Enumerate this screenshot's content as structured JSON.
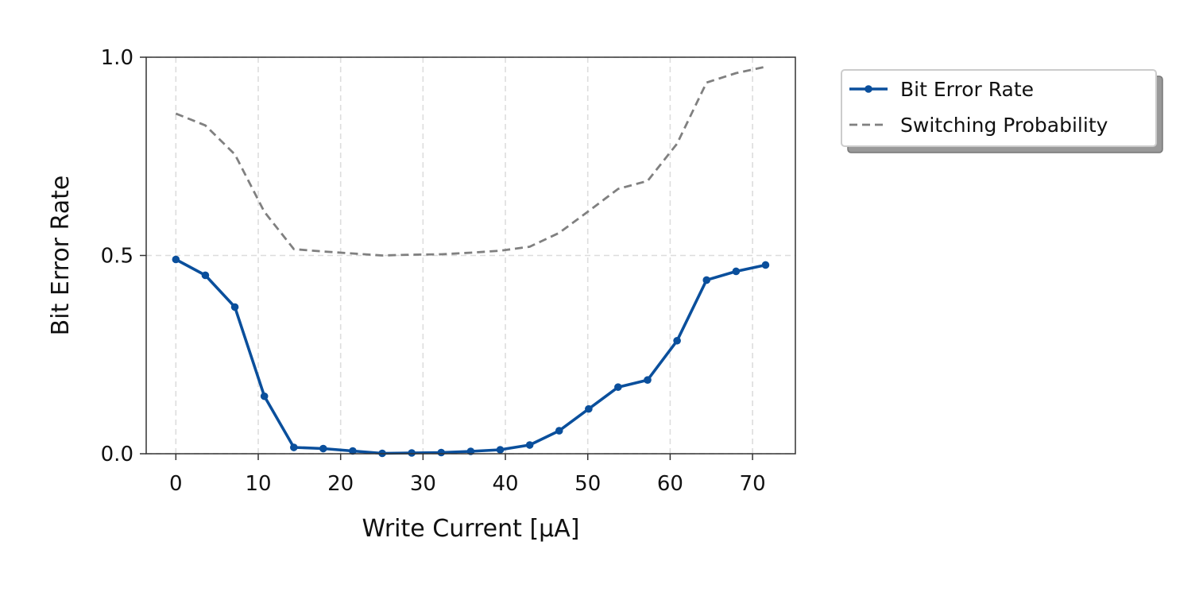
{
  "chart_data": {
    "type": "line",
    "title": "",
    "xlabel": "Write Current [μA]",
    "ylabel": "Bit Error Rate",
    "xlim": [
      -3.6,
      75.2
    ],
    "ylim": [
      0,
      1
    ],
    "xticks": [
      0,
      10,
      20,
      30,
      40,
      50,
      60,
      70
    ],
    "xtick_labels": [
      "0",
      "10",
      "20",
      "30",
      "40",
      "50",
      "60",
      "70"
    ],
    "yticks": [
      0,
      0.5,
      1
    ],
    "ytick_labels": [
      "0.0",
      "0.5",
      "1.0"
    ],
    "grid": true,
    "legend_position": "outside-top-right",
    "x": [
      0,
      3.58,
      7.16,
      10.74,
      14.32,
      17.89,
      21.47,
      25.05,
      28.63,
      32.21,
      35.79,
      39.37,
      42.95,
      46.53,
      50.11,
      53.68,
      57.26,
      60.84,
      64.42,
      68.0,
      71.58
    ],
    "series": [
      {
        "name": "Bit Error Rate",
        "color": "#0a4f9c",
        "style": "solid",
        "marker": "circle",
        "values": [
          0.49,
          0.45,
          0.37,
          0.145,
          0.016,
          0.013,
          0.007,
          0.001,
          0.002,
          0.003,
          0.006,
          0.01,
          0.022,
          0.058,
          0.113,
          0.168,
          0.186,
          0.285,
          0.438,
          0.46,
          0.476
        ]
      },
      {
        "name": "Switching Probability",
        "color": "#808080",
        "style": "dashed",
        "marker": "none",
        "values": [
          0.858,
          0.828,
          0.755,
          0.61,
          0.516,
          0.51,
          0.505,
          0.5,
          0.502,
          0.503,
          0.507,
          0.512,
          0.522,
          0.557,
          0.612,
          0.668,
          0.688,
          0.782,
          0.936,
          0.96,
          0.976
        ]
      }
    ]
  }
}
